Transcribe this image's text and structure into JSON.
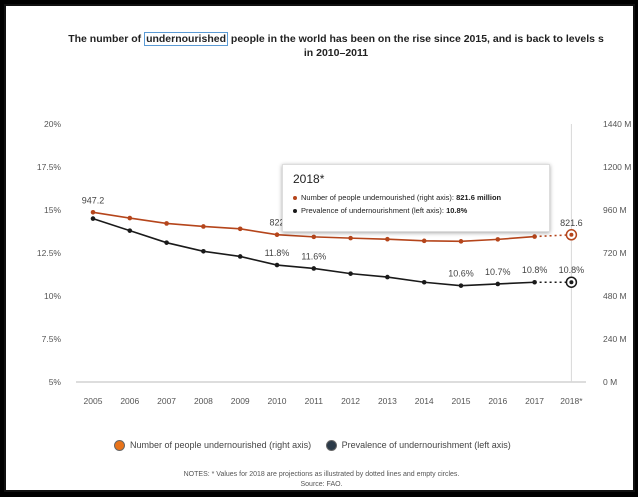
{
  "title_line1_pre": "The number of ",
  "title_highlight": "undernourished",
  "title_line1_post": " people in the world has been on the rise since 2015, and is back to levels s",
  "title_line2": "in 2010–2011",
  "tooltip": {
    "title": "2018*",
    "row1_label": "Number of people undernourished (right axis): ",
    "row1_value": "821.6 million",
    "row2_label": "Prevalence of undernourishment (left axis): ",
    "row2_value": "10.8%"
  },
  "legend": {
    "item1": "Number of people undernourished (right axis)",
    "item2": "Prevalence of undernourishment (left axis)"
  },
  "notes": {
    "line1": "NOTES: * Values for 2018 are projections as illustrated by dotted lines and empty circles.",
    "line2": "Source: FAO."
  },
  "colors": {
    "people": "#b5451b",
    "people_legend": "#e8731a",
    "prevalence": "#1a1a1a",
    "prevalence_legend": "#2b3a48"
  },
  "chart_data": {
    "type": "line",
    "categories": [
      "2005",
      "2006",
      "2007",
      "2008",
      "2009",
      "2010",
      "2011",
      "2012",
      "2013",
      "2014",
      "2015",
      "2016",
      "2017",
      "2018*"
    ],
    "left_axis": {
      "ticks": [
        "5%",
        "7.5%",
        "10%",
        "12.5%",
        "15%",
        "17.5%",
        "20%"
      ],
      "range": [
        5,
        20
      ]
    },
    "right_axis": {
      "ticks": [
        "0 M",
        "240 M",
        "480 M",
        "720 M",
        "960 M",
        "1200 M",
        "1440 M"
      ],
      "range": [
        0,
        1440
      ]
    },
    "series": [
      {
        "name": "Number of people undernourished (right axis)",
        "axis": "right",
        "values": [
          947.2,
          915,
          885,
          868,
          855,
          822,
          810,
          803,
          797,
          788,
          785,
          796,
          811.7,
          821.6
        ],
        "labels": [
          "947.2",
          "",
          "",
          "",
          "",
          "822",
          "",
          "",
          "",
          "",
          "",
          "",
          "811.7",
          "821.6"
        ],
        "projected_last": true
      },
      {
        "name": "Prevalence of undernourishment (left axis)",
        "axis": "left",
        "values": [
          14.5,
          13.8,
          13.1,
          12.6,
          12.3,
          11.8,
          11.6,
          11.3,
          11.1,
          10.8,
          10.6,
          10.7,
          10.8,
          10.8
        ],
        "labels": [
          "",
          "",
          "",
          "",
          "",
          "11.8%",
          "11.6%",
          "",
          "",
          "",
          "10.6%",
          "10.7%",
          "10.8%",
          "10.8%"
        ],
        "projected_last": true
      }
    ]
  }
}
